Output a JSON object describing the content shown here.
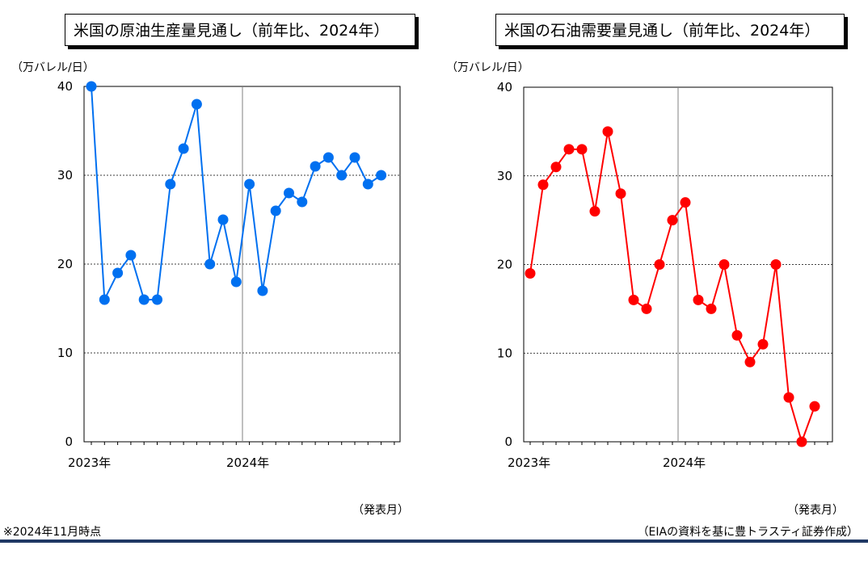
{
  "charts": [
    {
      "title": "米国の原油生産量見通し（前年比、2024年）",
      "unit_label": "（万バレル/日）",
      "x_axis_note": "（発表月）"
    },
    {
      "title": "米国の石油需要量見通し（前年比、2024年）",
      "unit_label": "（万バレル/日）",
      "x_axis_note": "（発表月）"
    }
  ],
  "footnote": "※2024年11月時点",
  "source": "（EIAの資料を基に豊トラスティ証券作成）",
  "chart_data": [
    {
      "type": "line",
      "title": "米国の原油生産量見通し（前年比、2024年）",
      "ylabel": "（万バレル/日）",
      "xlabel": "（発表月）",
      "ylim": [
        0,
        40
      ],
      "yticks": [
        "0",
        "10",
        "20",
        "30",
        "40"
      ],
      "x_tick_labels": [
        "2023年",
        "2024年"
      ],
      "series": [
        {
          "color": "#0070f0",
          "values": [
            40,
            16,
            19,
            21,
            16,
            16,
            29,
            33,
            38,
            20,
            25,
            18,
            29,
            17,
            26,
            28,
            27,
            31,
            32,
            30,
            32,
            29,
            30
          ]
        }
      ],
      "grid": "horizontal dashed"
    },
    {
      "type": "line",
      "title": "米国の石油需要量見通し（前年比、2024年）",
      "ylabel": "（万バレル/日）",
      "xlabel": "（発表月）",
      "ylim": [
        0,
        40
      ],
      "yticks": [
        "0",
        "10",
        "20",
        "30",
        "40"
      ],
      "x_tick_labels": [
        "2023年",
        "2024年"
      ],
      "series": [
        {
          "color": "#ff0000",
          "values": [
            19,
            29,
            31,
            33,
            33,
            26,
            35,
            28,
            16,
            15,
            20,
            25,
            27,
            16,
            15,
            20,
            12,
            9,
            11,
            20,
            5,
            0,
            4
          ]
        }
      ],
      "grid": "horizontal dashed"
    }
  ]
}
